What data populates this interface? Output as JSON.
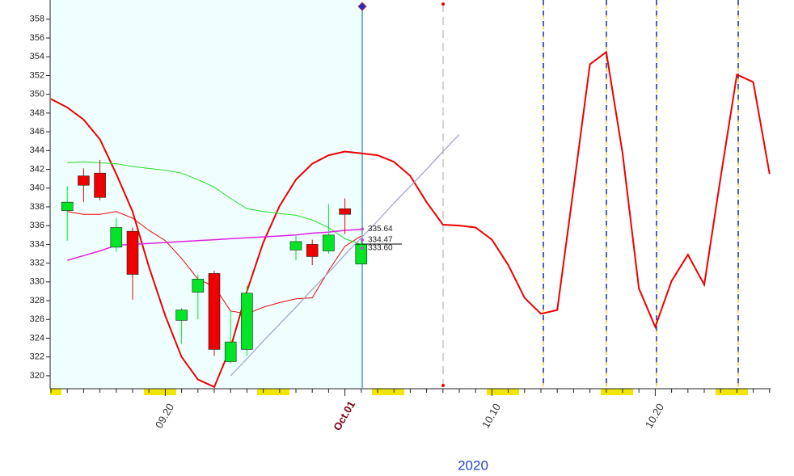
{
  "chart_data": {
    "type": "candlestick",
    "x_label": "2020",
    "categories": [
      null,
      null,
      null,
      null,
      null,
      null,
      null,
      "09.20",
      null,
      null,
      null,
      null,
      null,
      null,
      null,
      null,
      null,
      null,
      "Oct.01",
      null,
      null,
      null,
      null,
      null,
      null,
      null,
      null,
      "10.10",
      null,
      null,
      null,
      null,
      null,
      null,
      null,
      null,
      null,
      "10.20",
      null,
      null,
      null,
      null,
      null,
      null,
      null
    ],
    "bold_category_index": 18,
    "ylim": [
      318.7,
      360.05
    ],
    "yticks": [
      320,
      322,
      324,
      326,
      328,
      330,
      332,
      334,
      336,
      338,
      340,
      342,
      344,
      346,
      348,
      350,
      352,
      354,
      356,
      358
    ],
    "up_color": "#00e626",
    "down_color": "#ee0000",
    "open": [
      null,
      337.6,
      341.3,
      341.6,
      333.7,
      335.4,
      null,
      null,
      325.9,
      328.9,
      330.9,
      321.5,
      322.8,
      null,
      null,
      333.4,
      334.0,
      333.3,
      337.8,
      331.9,
      null,
      null,
      null,
      null,
      null,
      null,
      null,
      null,
      null,
      null,
      null,
      null,
      null,
      null,
      null,
      null,
      null,
      null,
      null,
      null,
      null,
      null,
      null,
      null,
      null
    ],
    "high": [
      null,
      340.2,
      342.1,
      343.0,
      336.8,
      335.8,
      null,
      null,
      327.2,
      330.8,
      331.2,
      326.9,
      329.6,
      null,
      null,
      334.9,
      334.5,
      338.3,
      338.9,
      334.5,
      null,
      null,
      null,
      null,
      null,
      null,
      null,
      null,
      null,
      null,
      null,
      null,
      null,
      null,
      null,
      null,
      null,
      null,
      null,
      null,
      null,
      null,
      null,
      null,
      null
    ],
    "low": [
      null,
      334.4,
      338.5,
      338.7,
      333.2,
      328.1,
      null,
      null,
      323.4,
      326.0,
      322.1,
      321.3,
      322.1,
      null,
      null,
      332.3,
      331.8,
      333.0,
      335.1,
      331.9,
      null,
      null,
      null,
      null,
      null,
      null,
      null,
      null,
      null,
      null,
      null,
      null,
      null,
      null,
      null,
      null,
      null,
      null,
      null,
      null,
      null,
      null,
      null,
      null,
      null
    ],
    "close": [
      null,
      338.5,
      340.3,
      339.0,
      335.8,
      330.8,
      null,
      null,
      327.0,
      330.3,
      322.8,
      323.6,
      328.8,
      null,
      null,
      334.3,
      332.7,
      335.0,
      337.2,
      334.0,
      null,
      null,
      null,
      null,
      null,
      null,
      null,
      null,
      null,
      null,
      null,
      null,
      null,
      null,
      null,
      null,
      null,
      null,
      null,
      null,
      null,
      null,
      null,
      null,
      null
    ],
    "series": [
      {
        "color": "#ee0000",
        "width": 2,
        "values": [
          349.5,
          348.6,
          347.3,
          345.2,
          341.5,
          337.5,
          331.6,
          326.4,
          322.0,
          319.6,
          318.8,
          323.0,
          329.0,
          334.2,
          338.1,
          340.9,
          342.6,
          343.5,
          343.9,
          343.7,
          343.5,
          342.8,
          341.3,
          338.5,
          336.1,
          336.0,
          335.8,
          334.5,
          331.8,
          328.3,
          326.6,
          327.0,
          340.0,
          353.2,
          354.5,
          343.7,
          329.3,
          325.2,
          330.1,
          332.9,
          329.7,
          341.1,
          352.1,
          351.3,
          341.5
        ]
      },
      {
        "color": "#ee0000",
        "width": 1,
        "values": [
          null,
          337.5,
          337.2,
          337.2,
          337.5,
          336.8,
          335.5,
          334.4,
          332.5,
          330.3,
          329.5,
          326.9,
          326.6,
          327.3,
          327.8,
          328.2,
          328.3,
          331.2,
          333.8,
          334.9,
          null,
          null,
          null,
          null,
          null,
          null,
          null,
          null,
          null,
          null,
          null,
          null,
          null,
          null,
          null,
          null,
          null,
          null,
          null,
          null,
          null,
          null,
          null,
          null,
          null
        ]
      },
      {
        "color": "#22dd22",
        "width": 1,
        "values": [
          null,
          342.7,
          342.8,
          342.7,
          342.6,
          342.3,
          342.1,
          341.9,
          341.6,
          340.9,
          340.1,
          338.9,
          337.8,
          337.5,
          337.3,
          337.1,
          336.6,
          335.8,
          334.6,
          334.0,
          null,
          null,
          null,
          null,
          null,
          null,
          null,
          null,
          null,
          null,
          null,
          null,
          null,
          null,
          null,
          null,
          null,
          null,
          null,
          null,
          null,
          null,
          null,
          null,
          null
        ]
      },
      {
        "color": "#e020e0",
        "width": 1.5,
        "values": [
          null,
          332.3,
          332.8,
          333.3,
          333.9,
          334.0,
          334.1,
          334.2,
          334.3,
          334.4,
          334.5,
          334.6,
          334.7,
          334.8,
          334.9,
          335.0,
          335.2,
          335.3,
          335.5,
          335.6,
          null,
          null,
          null,
          null,
          null,
          null,
          null,
          null,
          null,
          null,
          null,
          null,
          null,
          null,
          null,
          null,
          null,
          null,
          null,
          null,
          null,
          null,
          null,
          null,
          null
        ]
      },
      {
        "color": "#a0a0c8",
        "width": 1.2,
        "values": [
          null,
          null,
          null,
          null,
          null,
          null,
          null,
          null,
          null,
          null,
          null,
          320.0,
          321.8,
          323.7,
          325.5,
          327.3,
          329.2,
          331.0,
          332.9,
          334.7,
          336.5,
          338.4,
          340.2,
          342.0,
          343.9,
          345.7,
          null,
          null,
          null,
          null,
          null,
          null,
          null,
          null,
          null,
          null,
          null,
          null,
          null,
          null,
          null,
          null,
          null,
          null,
          null
        ]
      }
    ],
    "price_labels": [
      335.64,
      334.47,
      {
        "value": 333.6,
        "label": "333.60"
      }
    ]
  }
}
